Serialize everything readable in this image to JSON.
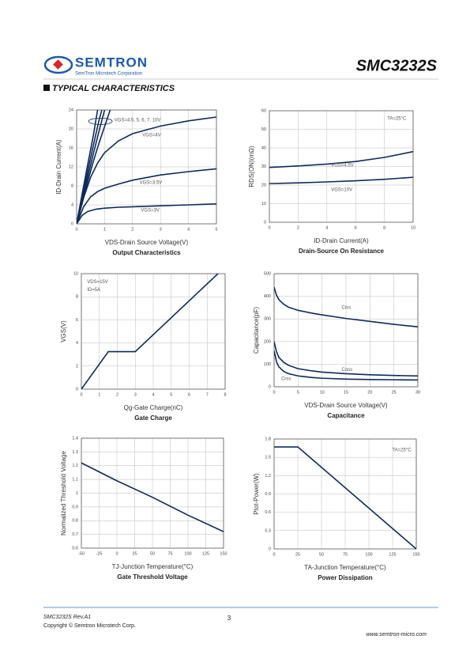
{
  "header": {
    "company": "SEMTRON",
    "subtitle": "SemTron Microtech Corporation",
    "part": "SMC3232S",
    "section": "TYPICAL CHARACTERISTICS"
  },
  "footer": {
    "revision": "SMC3232S Rev.A1",
    "copyright": "Copyright © Semtron Microtech Corp.",
    "page": "3",
    "url": "www.semtron-micro.com"
  },
  "chart_data": [
    {
      "type": "line",
      "title": "Output Characteristics",
      "xlabel": "VDS-Drain Source Voltage(V)",
      "ylabel": "ID-Drain Current(A)",
      "xlim": [
        0,
        5
      ],
      "ylim": [
        0,
        24
      ],
      "xticks": [
        0,
        1,
        2,
        3,
        4,
        5
      ],
      "yticks": [
        0,
        4,
        8,
        12,
        16,
        20,
        24
      ],
      "series": [
        {
          "name": "VGS=4.5, 5, 6, 7, 10V",
          "color": "#0d2a5c",
          "x": [
            0,
            0.2,
            0.4,
            0.6,
            0.8,
            1.0,
            1.2
          ],
          "values": [
            0,
            4.5,
            9,
            13.2,
            17,
            20.5,
            24
          ]
        },
        {
          "color": "#0d2a5c",
          "x": [
            0,
            0.2,
            0.4,
            0.6,
            0.8,
            1.0
          ],
          "values": [
            0,
            5,
            10,
            14.8,
            19.5,
            24
          ]
        },
        {
          "color": "#0d2a5c",
          "x": [
            0,
            0.2,
            0.4,
            0.6,
            0.8,
            0.9
          ],
          "values": [
            0,
            5.6,
            11.2,
            16.6,
            21.8,
            24
          ]
        },
        {
          "color": "#0d2a5c",
          "x": [
            0,
            0.2,
            0.4,
            0.6,
            0.75
          ],
          "values": [
            0,
            6.4,
            12.6,
            18.7,
            24
          ]
        },
        {
          "name": "VGS=4V",
          "color": "#0d2a5c",
          "x": [
            0,
            0.25,
            0.5,
            0.75,
            1,
            1.5,
            2,
            3,
            4,
            5
          ],
          "values": [
            0,
            5.5,
            9.8,
            12.8,
            15,
            17.5,
            19,
            20.6,
            21.7,
            22.5
          ]
        },
        {
          "name": "VGS=3.5V",
          "color": "#0d2a5c",
          "x": [
            0,
            0.25,
            0.5,
            0.75,
            1,
            1.5,
            2,
            3,
            4,
            5
          ],
          "values": [
            0,
            3.6,
            5.7,
            6.8,
            7.5,
            8.4,
            9.2,
            10.3,
            11,
            11.6
          ]
        },
        {
          "name": "VGS=3V",
          "color": "#0d2a5c",
          "x": [
            0,
            0.2,
            0.4,
            0.7,
            1,
            1.5,
            2,
            3,
            4,
            5
          ],
          "values": [
            0,
            1.8,
            2.6,
            3.1,
            3.3,
            3.5,
            3.6,
            3.8,
            4,
            4.2
          ]
        }
      ]
    },
    {
      "type": "line",
      "title": "Drain-Source On Resistance",
      "xlabel": "ID-Drain Current(A)",
      "ylabel": "RDS(ON)(mΩ)",
      "xlim": [
        0,
        10
      ],
      "ylim": [
        0,
        60
      ],
      "xticks": [
        0,
        2,
        4,
        6,
        8,
        10
      ],
      "yticks": [
        0,
        10,
        20,
        30,
        40,
        50,
        60
      ],
      "notes": [
        "TA=25°C"
      ],
      "series": [
        {
          "name": "VGS=4.5V",
          "color": "#0d2a5c",
          "x": [
            0,
            2,
            4,
            6,
            8,
            10
          ],
          "values": [
            29.5,
            30.3,
            31.3,
            32.7,
            34.9,
            38
          ]
        },
        {
          "name": "VGS=10V",
          "color": "#0d2a5c",
          "x": [
            0,
            2,
            4,
            6,
            8,
            10
          ],
          "values": [
            20.8,
            21.2,
            21.7,
            22.3,
            23.1,
            24.2
          ]
        }
      ]
    },
    {
      "type": "line",
      "title": "Gate Charge",
      "xlabel": "Qg-Gate Charge(nC)",
      "ylabel": "VGS(V)",
      "xlim": [
        0,
        8
      ],
      "ylim": [
        0,
        10
      ],
      "xticks": [
        0,
        1,
        2,
        3,
        4,
        5,
        6,
        7,
        8
      ],
      "yticks": [
        0,
        2,
        4,
        6,
        8,
        10
      ],
      "notes": [
        "VDS=15V",
        "ID=5A"
      ],
      "series": [
        {
          "color": "#0d2a5c",
          "x": [
            0,
            1.5,
            3,
            7.6
          ],
          "values": [
            0,
            3.25,
            3.25,
            10
          ]
        }
      ]
    },
    {
      "type": "line",
      "title": "Capacitance",
      "xlabel": "VDS-Drain Source Voltage(V)",
      "ylabel": "Capacitance(pF)",
      "xlim": [
        0,
        30
      ],
      "ylim": [
        0,
        500
      ],
      "xticks": [
        0,
        5,
        10,
        15,
        20,
        25,
        30
      ],
      "yticks": [
        0,
        100,
        200,
        300,
        400,
        500
      ],
      "series": [
        {
          "name": "Ciss",
          "color": "#0d2a5c",
          "x": [
            0,
            0.5,
            1,
            2,
            3,
            5,
            8,
            10,
            15,
            20,
            25,
            30
          ],
          "values": [
            440,
            405,
            385,
            365,
            352,
            338,
            325,
            318,
            302,
            289,
            276,
            265
          ]
        },
        {
          "name": "Coss",
          "color": "#0d2a5c",
          "x": [
            0,
            0.5,
            1,
            2,
            3,
            5,
            8,
            10,
            15,
            20,
            25,
            30
          ],
          "values": [
            200,
            155,
            130,
            108,
            95,
            80,
            70,
            65,
            58,
            53,
            50,
            48
          ]
        },
        {
          "name": "Crss",
          "color": "#0d2a5c",
          "x": [
            0,
            0.5,
            1,
            2,
            3,
            5,
            8,
            10,
            15,
            20,
            25,
            30
          ],
          "values": [
            160,
            110,
            88,
            68,
            58,
            48,
            41,
            38,
            34,
            32,
            31,
            30
          ]
        }
      ]
    },
    {
      "type": "line",
      "title": "Gate Threshold Voltage",
      "xlabel": "TJ-Junction Temperature(°C)",
      "ylabel": "Normalized Threshold Voltage",
      "xlim": [
        -50,
        150
      ],
      "ylim": [
        0.6,
        1.4
      ],
      "xticks": [
        -50,
        -25,
        0,
        25,
        50,
        75,
        100,
        125,
        150
      ],
      "yticks": [
        0.6,
        0.7,
        0.8,
        0.9,
        1,
        1.1,
        1.2,
        1.3,
        1.4
      ],
      "series": [
        {
          "color": "#0d2a5c",
          "x": [
            -50,
            0,
            50,
            100,
            150
          ],
          "values": [
            1.22,
            1.09,
            0.97,
            0.84,
            0.72
          ]
        }
      ]
    },
    {
      "type": "line",
      "title": "Power Dissipation",
      "xlabel": "TA-Junction Temperature(°C)",
      "ylabel": "Ptot-Power(W)",
      "xlim": [
        0,
        150
      ],
      "ylim": [
        0,
        1.8
      ],
      "xticks": [
        0,
        25,
        50,
        75,
        100,
        125,
        150
      ],
      "yticks": [
        0,
        0.3,
        0.6,
        0.9,
        1.2,
        1.5,
        1.8
      ],
      "notes": [
        "TA=25°C"
      ],
      "series": [
        {
          "color": "#0d2a5c",
          "x": [
            0,
            25,
            150
          ],
          "values": [
            1.67,
            1.67,
            0
          ]
        }
      ]
    }
  ]
}
